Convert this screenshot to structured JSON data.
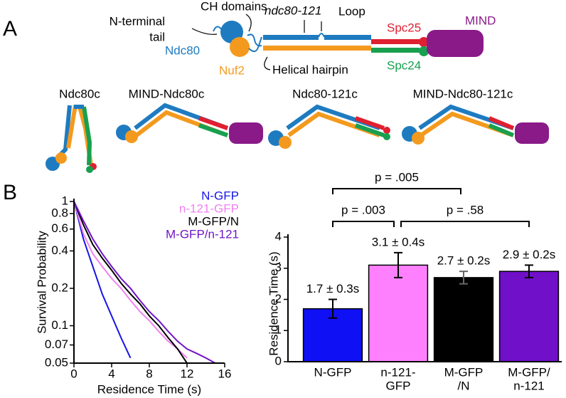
{
  "diagram": {
    "panel_a": "A",
    "panel_b": "B",
    "labels": {
      "n_terminal_tail": [
        "N-terminal",
        "tail"
      ],
      "ch_domains": "CH domains",
      "ndc80_121": "ndc80-121",
      "loop": "Loop",
      "ndc80": "Ndc80",
      "nuf2": "Nuf2",
      "helical_hairpin": "Helical hairpin",
      "spc25": "Spc25",
      "mind": "MIND",
      "spc24": "Spc24"
    },
    "complexes": [
      "Ndc80c",
      "MIND-Ndc80c",
      "Ndc80-121c",
      "MIND-Ndc80-121c"
    ]
  },
  "chart_data": [
    {
      "type": "line",
      "scale": "log",
      "legend": "top-right",
      "xlabel": "Residence Time (s)",
      "ylabel": "Survival Probability",
      "x": [
        0,
        1,
        2,
        3,
        4,
        5,
        6,
        7,
        8,
        9,
        10,
        11,
        12,
        13,
        14,
        15
      ],
      "series": [
        {
          "name": "N-GFP",
          "color": "#1414e6",
          "values": [
            1,
            0.5,
            0.3,
            0.18,
            0.12,
            0.08,
            0.055,
            null,
            null,
            null,
            null,
            null,
            null,
            null,
            null,
            null
          ]
        },
        {
          "name": "n-121-GFP",
          "color": "#f080f0",
          "values": [
            1,
            0.55,
            0.38,
            0.3,
            0.24,
            0.2,
            0.16,
            0.13,
            0.11,
            0.09,
            0.075,
            0.065,
            0.055,
            null,
            null,
            null
          ]
        },
        {
          "name": "M-GFP/N",
          "color": "#000000",
          "values": [
            1,
            0.65,
            0.45,
            0.35,
            0.28,
            0.22,
            0.18,
            0.15,
            0.12,
            0.1,
            0.08,
            0.065,
            0.05,
            null,
            null,
            null
          ]
        },
        {
          "name": "M-GFP/n-121",
          "color": "#7014c8",
          "values": [
            1,
            0.7,
            0.5,
            0.38,
            0.3,
            0.24,
            0.2,
            0.16,
            0.13,
            0.11,
            0.09,
            0.075,
            0.065,
            0.06,
            0.055,
            0.05
          ]
        }
      ],
      "xlim": [
        0,
        16
      ],
      "xticks": [
        0,
        4,
        8,
        12,
        16
      ],
      "ylim": [
        0.05,
        1
      ],
      "yticks": [
        0.05,
        0.07,
        0.1,
        0.2,
        0.4,
        0.6,
        0.8,
        1
      ]
    },
    {
      "type": "bar",
      "ylabel": "Residence Time (s)",
      "categories": [
        [
          "N-GFP"
        ],
        [
          "n-121-",
          "GFP"
        ],
        [
          "M-GFP",
          "/N"
        ],
        [
          "M-GFP/",
          "n-121"
        ]
      ],
      "values": [
        1.7,
        3.1,
        2.7,
        2.9
      ],
      "errors": [
        0.3,
        0.4,
        0.2,
        0.2
      ],
      "value_labels": [
        "1.7 ± 0.3s",
        "3.1 ± 0.4s",
        "2.7 ± 0.2s",
        "2.9 ± 0.2s"
      ],
      "colors": [
        "#1010f5",
        "#ff80ff",
        "#000000",
        "#7010c8"
      ],
      "ylim": [
        0,
        4
      ],
      "yticks": [
        0,
        1,
        2,
        3,
        4
      ],
      "annotations": [
        "p = .005",
        "p = .003",
        "p = .58"
      ]
    }
  ]
}
